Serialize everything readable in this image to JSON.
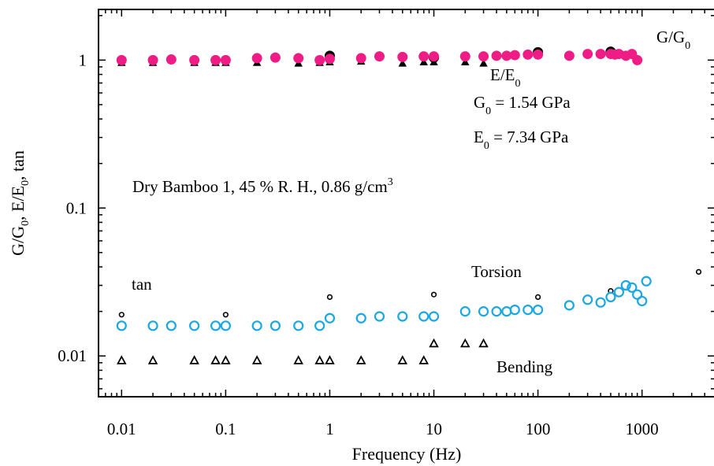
{
  "chart_data": {
    "type": "scatter",
    "xlabel": "Frequency (Hz)",
    "ylabel": {
      "parts": [
        "G/G",
        "0",
        ", E/E",
        "0",
        ", tan"
      ]
    },
    "x_scale": "log",
    "y_scale": "log",
    "xlim": [
      0.006,
      5000
    ],
    "ylim": [
      0.0053,
      2.2
    ],
    "x_ticks": [
      {
        "value": 0.01,
        "label": "0.01"
      },
      {
        "value": 0.1,
        "label": "0.1"
      },
      {
        "value": 1,
        "label": "1"
      },
      {
        "value": 10,
        "label": "10"
      },
      {
        "value": 100,
        "label": "100"
      },
      {
        "value": 1000,
        "label": "1000"
      }
    ],
    "y_ticks": [
      {
        "value": 0.01,
        "label": "0.01"
      },
      {
        "value": 0.1,
        "label": "0.1"
      },
      {
        "value": 1,
        "label": "1"
      }
    ],
    "grid": false,
    "series": [
      {
        "marker": "triangle-filled",
        "color": "#000000",
        "x": [
          0.01,
          0.02,
          0.05,
          0.08,
          0.1,
          0.2,
          0.5,
          0.8,
          1,
          2,
          5,
          8,
          10,
          20,
          30
        ],
        "y": [
          0.96,
          0.96,
          0.96,
          0.96,
          0.96,
          0.96,
          0.95,
          0.96,
          0.97,
          0.98,
          0.95,
          0.97,
          0.97,
          0.97,
          0.95
        ]
      },
      {
        "marker": "circle-filled",
        "color": "#000000",
        "x": [
          1,
          10,
          100,
          500
        ],
        "y": [
          1.07,
          1.04,
          1.13,
          1.14
        ]
      },
      {
        "marker": "circle-filled",
        "color": "#ee1c84",
        "x": [
          0.01,
          0.02,
          0.03,
          0.05,
          0.08,
          0.1,
          0.2,
          0.3,
          0.5,
          0.8,
          1,
          2,
          3,
          5,
          8,
          10,
          20,
          30,
          40,
          50,
          60,
          80,
          100,
          200,
          300,
          400,
          500,
          550,
          600,
          700,
          800,
          900
        ],
        "y": [
          1.0,
          1.0,
          1.01,
          1.0,
          1.0,
          1.0,
          1.03,
          1.04,
          1.03,
          1.0,
          1.02,
          1.03,
          1.06,
          1.05,
          1.06,
          1.06,
          1.06,
          1.06,
          1.07,
          1.07,
          1.08,
          1.09,
          1.09,
          1.07,
          1.1,
          1.1,
          1.1,
          1.09,
          1.1,
          1.07,
          1.1,
          1.0
        ]
      },
      {
        "marker": "circle-open-small",
        "color": "#000000",
        "x": [
          0.01,
          0.1,
          1,
          10,
          100,
          500,
          3500
        ],
        "y": [
          0.019,
          0.019,
          0.025,
          0.026,
          0.025,
          0.0275,
          0.037
        ]
      },
      {
        "marker": "circle-open",
        "color": "#1ba7e1",
        "x": [
          0.01,
          0.02,
          0.03,
          0.05,
          0.08,
          0.1,
          0.2,
          0.3,
          0.5,
          0.8,
          1,
          2,
          3,
          5,
          8,
          10,
          20,
          30,
          40,
          50,
          60,
          80,
          100,
          200,
          300,
          400,
          500,
          600,
          700,
          800,
          900,
          1000,
          1100
        ],
        "y": [
          0.016,
          0.016,
          0.016,
          0.016,
          0.016,
          0.016,
          0.016,
          0.016,
          0.016,
          0.016,
          0.018,
          0.018,
          0.0185,
          0.0185,
          0.0185,
          0.0185,
          0.02,
          0.02,
          0.02,
          0.02,
          0.0205,
          0.0205,
          0.0205,
          0.022,
          0.024,
          0.023,
          0.025,
          0.027,
          0.03,
          0.029,
          0.026,
          0.0235,
          0.032
        ]
      },
      {
        "marker": "triangle-open",
        "color": "#000000",
        "x": [
          0.01,
          0.02,
          0.05,
          0.08,
          0.1,
          0.2,
          0.5,
          0.8,
          1,
          2,
          5,
          8,
          10,
          20,
          30
        ],
        "y": [
          0.0093,
          0.0093,
          0.0093,
          0.0093,
          0.0093,
          0.0093,
          0.0093,
          0.0093,
          0.0093,
          0.0093,
          0.0093,
          0.0093,
          0.0121,
          0.0121,
          0.0121
        ]
      }
    ],
    "annotations": [
      {
        "id": "g-ratio",
        "parts": [
          "G/G",
          "0"
        ]
      },
      {
        "id": "e-ratio",
        "parts": [
          "E/E",
          "0"
        ]
      },
      {
        "id": "g0-value",
        "parts": [
          "G",
          "0",
          " = 1.54 GPa"
        ]
      },
      {
        "id": "e0-value",
        "parts": [
          "E",
          "0",
          " = 7.34 GPa"
        ]
      },
      {
        "id": "sample",
        "parts": [
          "Dry Bamboo 1, 45 % R. H., 0.86 g/cm",
          "3"
        ]
      },
      {
        "id": "tan",
        "parts": [
          "tan"
        ]
      },
      {
        "id": "torsion",
        "parts": [
          "Torsion"
        ]
      },
      {
        "id": "bending",
        "parts": [
          "Bending"
        ]
      }
    ]
  }
}
